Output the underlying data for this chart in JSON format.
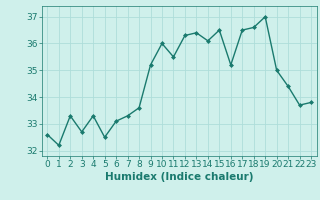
{
  "x": [
    0,
    1,
    2,
    3,
    4,
    5,
    6,
    7,
    8,
    9,
    10,
    11,
    12,
    13,
    14,
    15,
    16,
    17,
    18,
    19,
    20,
    21,
    22,
    23
  ],
  "y": [
    32.6,
    32.2,
    33.3,
    32.7,
    33.3,
    32.5,
    33.1,
    33.3,
    33.6,
    35.2,
    36.0,
    35.5,
    36.3,
    36.4,
    36.1,
    36.5,
    35.2,
    36.5,
    36.6,
    37.0,
    35.0,
    34.4,
    33.7,
    33.8
  ],
  "line_color": "#1a7a6e",
  "marker": "D",
  "marker_size": 2.0,
  "linewidth": 1.0,
  "bg_color": "#cff0eb",
  "grid_color": "#aeddda",
  "xlabel": "Humidex (Indice chaleur)",
  "ylim": [
    31.8,
    37.4
  ],
  "xlim": [
    -0.5,
    23.5
  ],
  "yticks": [
    32,
    33,
    34,
    35,
    36,
    37
  ],
  "xticks": [
    0,
    1,
    2,
    3,
    4,
    5,
    6,
    7,
    8,
    9,
    10,
    11,
    12,
    13,
    14,
    15,
    16,
    17,
    18,
    19,
    20,
    21,
    22,
    23
  ],
  "tick_fontsize": 6.5,
  "label_fontsize": 7.5
}
